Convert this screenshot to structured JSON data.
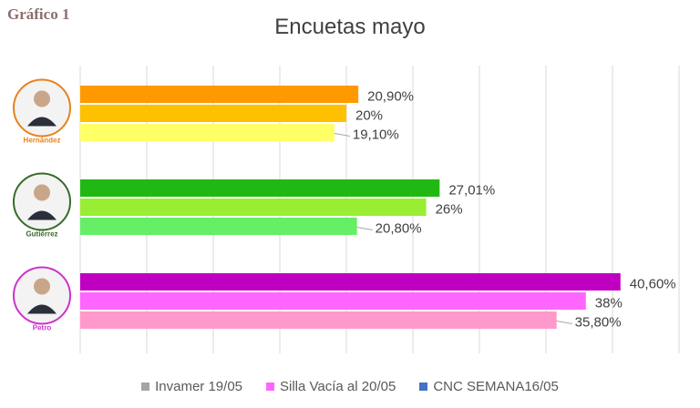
{
  "figure_label": "Gráfico 1",
  "chart_data": {
    "type": "bar",
    "orientation": "horizontal",
    "title": "Encuetas mayo",
    "xlabel": "",
    "ylabel": "",
    "xlim": [
      0,
      45
    ],
    "grid": true,
    "legend_position": "bottom",
    "categories": [
      {
        "candidate": "Hernández",
        "label_color": "#e8821e",
        "bars": [
          {
            "value": 20.9,
            "label": "20,90%",
            "color": "#ff9900"
          },
          {
            "value": 20.0,
            "label": "20%",
            "color": "#ffc000"
          },
          {
            "value": 19.1,
            "label": "19,10%",
            "color": "#ffff66"
          }
        ]
      },
      {
        "candidate": "Gutiérrez",
        "label_color": "#3a6a2a",
        "bars": [
          {
            "value": 27.01,
            "label": "27,01%",
            "color": "#22b814"
          },
          {
            "value": 26.0,
            "label": "26%",
            "color": "#99ee33"
          },
          {
            "value": 20.8,
            "label": "20,80%",
            "color": "#66ee66"
          }
        ]
      },
      {
        "candidate": "Petro",
        "label_color": "#cc33cc",
        "bars": [
          {
            "value": 40.6,
            "label": "40,60%",
            "color": "#c000c0"
          },
          {
            "value": 38.0,
            "label": "38%",
            "color": "#ff66ff"
          },
          {
            "value": 35.8,
            "label": "35,80%",
            "color": "#ff99cc"
          }
        ]
      }
    ],
    "legend": [
      {
        "name": "Invamer 19/05",
        "color": "#a5a5a5"
      },
      {
        "name": "Silla Vacía al 20/05",
        "color": "#ff66ff"
      },
      {
        "name": "CNC SEMANA16/05",
        "color": "#4472c4"
      }
    ]
  }
}
